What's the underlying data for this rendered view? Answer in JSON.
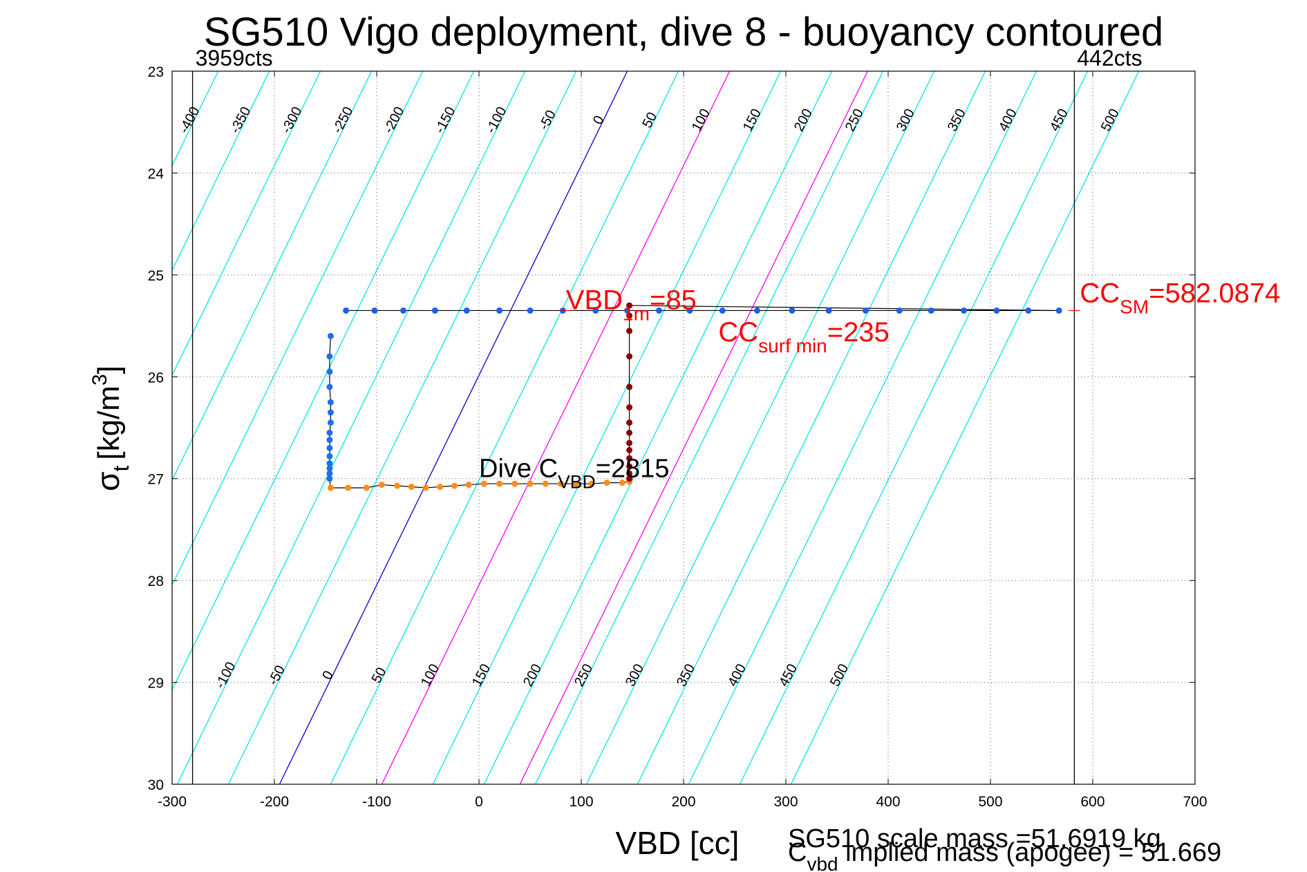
{
  "chart_data": {
    "type": "scatter",
    "title": "SG510 Vigo deployment, dive 8 - buoyancy contoured",
    "xlabel": "VBD [cc]",
    "ylabel": {
      "main": "σ",
      "sub": "t",
      "unit": "[kg/m",
      "sup": "3",
      "close": "]"
    },
    "xlim": [
      -300,
      700
    ],
    "ylim": [
      23,
      30
    ],
    "y_reversed": true,
    "grid": true,
    "xticks": [
      -300,
      -200,
      -100,
      0,
      100,
      200,
      300,
      400,
      500,
      600,
      700
    ],
    "yticks": [
      23,
      24,
      25,
      26,
      27,
      28,
      29,
      30
    ],
    "contours": {
      "levels": [
        -400,
        -350,
        -300,
        -250,
        -200,
        -150,
        -100,
        -50,
        0,
        50,
        100,
        150,
        200,
        250,
        300,
        350,
        400,
        450,
        500
      ],
      "x_offset_at_sigma_23": 145,
      "x_offset_at_sigma_30": -195,
      "highlight": {
        "0": "#0000cc",
        "100": "#ff00ff",
        "235": "#ff00ff"
      },
      "color": "#00e5e5",
      "top_labels": [
        "-400",
        "-350",
        "-300",
        "-250",
        "-200",
        "-150",
        "-100",
        "-50",
        "0",
        "50",
        "100",
        "150",
        "200",
        "250",
        "300",
        "350",
        "400",
        "450",
        "500"
      ],
      "bottom_labels": [
        "-100",
        "-50",
        "0",
        "50",
        "100",
        "150",
        "200",
        "250",
        "300",
        "350",
        "400",
        "450",
        "500"
      ]
    },
    "vertical_lines": [
      {
        "x": -280,
        "label": "3959cts"
      },
      {
        "x": 582,
        "label": "442cts"
      }
    ],
    "series": [
      {
        "segment": "surface",
        "color": "#1f5fe6",
        "points": [
          [
            -130,
            25.35
          ],
          [
            -102,
            25.35
          ],
          [
            -74,
            25.35
          ],
          [
            -43,
            25.35
          ],
          [
            -12,
            25.35
          ],
          [
            20,
            25.35
          ],
          [
            50,
            25.35
          ],
          [
            82,
            25.35
          ],
          [
            114,
            25.35
          ],
          [
            145,
            25.35
          ],
          [
            176,
            25.35
          ],
          [
            206,
            25.35
          ],
          [
            238,
            25.35
          ],
          [
            272,
            25.35
          ],
          [
            306,
            25.35
          ],
          [
            342,
            25.35
          ],
          [
            378,
            25.35
          ],
          [
            411,
            25.35
          ],
          [
            442,
            25.35
          ],
          [
            474,
            25.35
          ],
          [
            506,
            25.35
          ],
          [
            537,
            25.35
          ],
          [
            567,
            25.35
          ]
        ]
      },
      {
        "segment": "descent",
        "color": "#1f6fe6",
        "points": [
          [
            -145,
            25.6
          ],
          [
            -146,
            25.8
          ],
          [
            -146,
            25.95
          ],
          [
            -146,
            26.1
          ],
          [
            -145,
            26.25
          ],
          [
            -145,
            26.35
          ],
          [
            -145,
            26.45
          ],
          [
            -146,
            26.55
          ],
          [
            -146,
            26.62
          ],
          [
            -146,
            26.7
          ],
          [
            -146,
            26.78
          ],
          [
            -146,
            26.85
          ],
          [
            -146,
            26.9
          ],
          [
            -146,
            26.95
          ],
          [
            -146,
            27.0
          ]
        ]
      },
      {
        "segment": "bottom",
        "color": "#ff8c1a",
        "points": [
          [
            -145,
            27.09
          ],
          [
            -128,
            27.09
          ],
          [
            -110,
            27.09
          ],
          [
            -95,
            27.06
          ],
          [
            -80,
            27.07
          ],
          [
            -66,
            27.08
          ],
          [
            -52,
            27.09
          ],
          [
            -38,
            27.08
          ],
          [
            -24,
            27.07
          ],
          [
            -10,
            27.06
          ],
          [
            5,
            27.05
          ],
          [
            20,
            27.05
          ],
          [
            35,
            27.05
          ],
          [
            50,
            27.05
          ],
          [
            65,
            27.05
          ],
          [
            80,
            27.05
          ],
          [
            95,
            27.05
          ],
          [
            110,
            27.05
          ],
          [
            125,
            27.04
          ],
          [
            140,
            27.04
          ],
          [
            147,
            27.03
          ]
        ]
      },
      {
        "segment": "ascent",
        "color": "#8b0000",
        "points": [
          [
            147,
            25.3
          ],
          [
            147,
            25.4
          ],
          [
            147,
            25.55
          ],
          [
            147,
            25.8
          ],
          [
            147,
            26.1
          ],
          [
            147,
            26.3
          ],
          [
            147,
            26.45
          ],
          [
            147,
            26.55
          ],
          [
            147,
            26.65
          ],
          [
            147,
            26.72
          ],
          [
            147,
            26.8
          ],
          [
            147,
            26.88
          ],
          [
            147,
            26.95
          ],
          [
            147,
            27.0
          ]
        ]
      }
    ],
    "annotations": [
      {
        "text": "VBD",
        "sub": "1m",
        "suffix": "=85",
        "x": 85,
        "y": 25.35,
        "color": "#ff0000"
      },
      {
        "text": "CC",
        "sub": "surf min",
        "suffix": "=235",
        "x": 230,
        "y": 25.45,
        "color": "#ff0000"
      },
      {
        "text": "CC",
        "sub": "SM",
        "suffix": "=582.0874",
        "x": 582,
        "y": 25.35,
        "color": "#ff0000"
      },
      {
        "text": "Dive C",
        "sub": "VBD",
        "suffix": "=2815",
        "x": 0,
        "y": 27.0,
        "color": "#000000"
      }
    ],
    "footer": {
      "scale_mass": "SG510 scale mass =51.6919 kg",
      "implied_prefix": "C",
      "implied_sub": "vbd",
      "implied_suffix": " implied mass (apogee) = 51.669"
    }
  }
}
